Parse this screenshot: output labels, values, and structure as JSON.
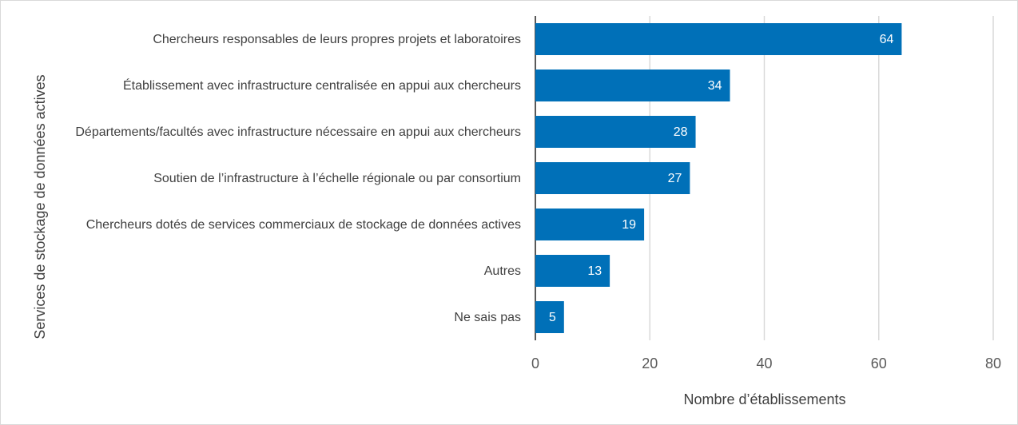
{
  "chart_data": {
    "type": "bar",
    "orientation": "horizontal",
    "categories": [
      "Chercheurs responsables de leurs propres projets et laboratoires",
      "Établissement avec infrastructure centralisée en appui aux chercheurs",
      "Départements/facultés avec infrastructure nécessaire en appui aux chercheurs",
      "Soutien de l’infrastructure à l’échelle régionale ou par consortium",
      "Chercheurs dotés de services commerciaux de stockage de données actives",
      "Autres",
      "Ne sais pas"
    ],
    "values": [
      64,
      34,
      28,
      27,
      19,
      13,
      5
    ],
    "color": "#0070b8",
    "xlim": [
      0,
      80
    ],
    "xticks": [
      0,
      20,
      40,
      60,
      80
    ],
    "grid": true,
    "x_label": "Nombre d’établissements",
    "y_label": "Services de stockage de données actives"
  }
}
